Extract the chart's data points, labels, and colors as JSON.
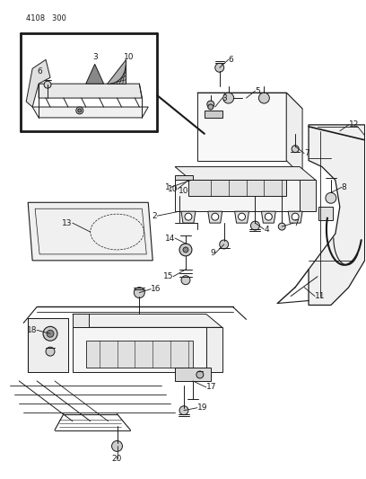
{
  "title": "4108 300",
  "bg_color": "#ffffff",
  "fg_color": "#1a1a1a",
  "fig_width": 4.08,
  "fig_height": 5.33,
  "dpi": 100
}
